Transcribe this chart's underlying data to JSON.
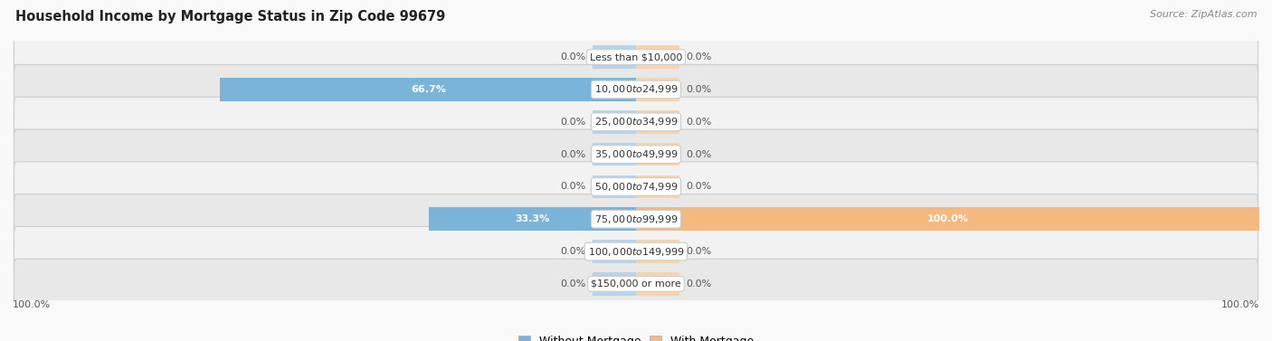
{
  "title": "Household Income by Mortgage Status in Zip Code 99679",
  "source": "Source: ZipAtlas.com",
  "categories": [
    "Less than $10,000",
    "$10,000 to $24,999",
    "$25,000 to $34,999",
    "$35,000 to $49,999",
    "$50,000 to $74,999",
    "$75,000 to $99,999",
    "$100,000 to $149,999",
    "$150,000 or more"
  ],
  "without_mortgage": [
    0.0,
    66.7,
    0.0,
    0.0,
    0.0,
    33.3,
    0.0,
    0.0
  ],
  "with_mortgage": [
    0.0,
    0.0,
    0.0,
    0.0,
    0.0,
    100.0,
    0.0,
    0.0
  ],
  "color_without": "#7ab4d8",
  "color_with": "#f5b97f",
  "color_without_stub": "#b8d4ea",
  "color_with_stub": "#f8d4aa",
  "bg_row_light": "#f2f2f2",
  "bg_row_dark": "#e8e8e8",
  "x_left_label": "100.0%",
  "x_right_label": "100.0%",
  "title_fontsize": 10.5,
  "source_fontsize": 8,
  "value_fontsize": 8,
  "cat_fontsize": 8,
  "legend_fontsize": 9,
  "stub_size": 7,
  "xlim": 100
}
